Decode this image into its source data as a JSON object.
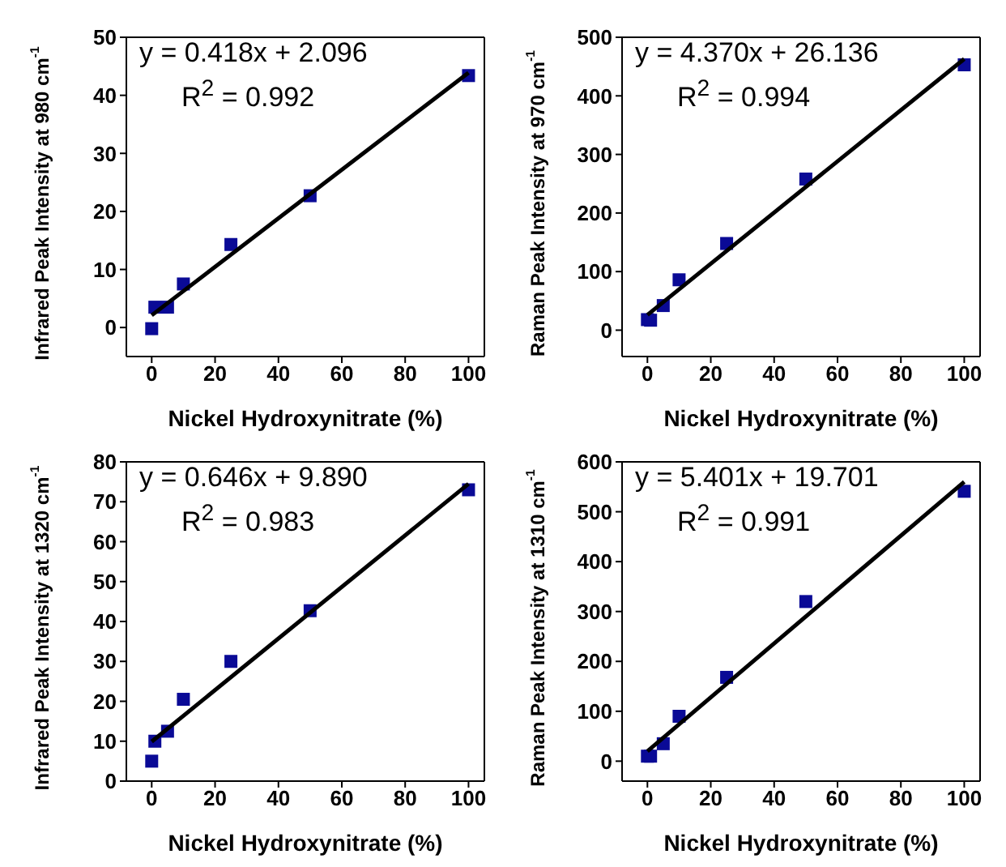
{
  "chart_data": [
    {
      "type": "scatter",
      "xlabel": "Nickel Hydroxynitrate (%)",
      "ylabel": "Infrared Peak Intensity at 980 cm$^{-1}$",
      "xlim": [
        -8,
        105
      ],
      "xticks": [
        0,
        20,
        40,
        60,
        80,
        100
      ],
      "ylim": [
        -5,
        50
      ],
      "yticks": [
        0,
        10,
        20,
        30,
        40,
        50
      ],
      "marker": "square",
      "legend": false,
      "annotations": [
        "y = 0.418x + 2.096",
        "R$^{2}$ = 0.992"
      ],
      "series": [
        {
          "x": [
            0,
            1,
            5,
            10,
            25,
            50,
            100
          ],
          "values": [
            -0.2,
            3.5,
            3.5,
            7.5,
            14.3,
            22.7,
            43.4
          ],
          "color": "#0a0a96"
        },
        {
          "type": "line",
          "x": [
            0,
            100
          ],
          "values": [
            2.1,
            43.9
          ],
          "color": "#000000",
          "marker": "none"
        }
      ]
    },
    {
      "type": "scatter",
      "xlabel": "Nickel Hydroxynitrate (%)",
      "ylabel": "Raman Peak Intensity at 970 cm$^{-1}$",
      "xlim": [
        -8,
        105
      ],
      "xticks": [
        0,
        20,
        40,
        60,
        80,
        100
      ],
      "ylim": [
        -45,
        500
      ],
      "yticks": [
        0,
        100,
        200,
        300,
        400,
        500
      ],
      "marker": "square",
      "legend": false,
      "annotations": [
        "y = 4.370x + 26.136",
        "R$^{2}$ = 0.994"
      ],
      "series": [
        {
          "x": [
            0,
            1,
            5,
            10,
            25,
            50,
            100
          ],
          "values": [
            18,
            17,
            42,
            86,
            148,
            258,
            453
          ],
          "color": "#0a0a96"
        },
        {
          "type": "line",
          "x": [
            0,
            100
          ],
          "values": [
            26,
            463
          ],
          "color": "#000000",
          "marker": "none"
        }
      ]
    },
    {
      "type": "scatter",
      "xlabel": "Nickel Hydroxynitrate (%)",
      "ylabel": "Infrared Peak Intensity at 1320 cm$^{-1}$",
      "xlim": [
        -8,
        105
      ],
      "xticks": [
        0,
        20,
        40,
        60,
        80,
        100
      ],
      "ylim": [
        0,
        80
      ],
      "yticks": [
        0,
        10,
        20,
        30,
        40,
        50,
        60,
        70,
        80
      ],
      "marker": "square",
      "legend": false,
      "annotations": [
        "y = 0.646x + 9.890",
        "R$^{2}$ = 0.983"
      ],
      "series": [
        {
          "x": [
            0,
            1,
            5,
            10,
            25,
            50,
            100
          ],
          "values": [
            5,
            10,
            12.5,
            20.5,
            30,
            42.7,
            73
          ],
          "color": "#0a0a96"
        },
        {
          "type": "line",
          "x": [
            0,
            100
          ],
          "values": [
            9.9,
            74.5
          ],
          "color": "#000000",
          "marker": "none"
        }
      ]
    },
    {
      "type": "scatter",
      "xlabel": "Nickel Hydroxynitrate (%)",
      "ylabel": "Raman Peak Intensity at 1310 cm$^{-1}$",
      "xlim": [
        -8,
        105
      ],
      "xticks": [
        0,
        20,
        40,
        60,
        80,
        100
      ],
      "ylim": [
        -40,
        600
      ],
      "yticks": [
        0,
        100,
        200,
        300,
        400,
        500,
        600
      ],
      "marker": "square",
      "legend": false,
      "annotations": [
        "y = 5.401x + 19.701",
        "R$^{2}$ = 0.991"
      ],
      "series": [
        {
          "x": [
            0,
            1,
            5,
            10,
            25,
            50,
            100
          ],
          "values": [
            10,
            10,
            35,
            90,
            168,
            320,
            541
          ],
          "color": "#0a0a96"
        },
        {
          "type": "line",
          "x": [
            0,
            100
          ],
          "values": [
            20,
            560
          ],
          "color": "#000000",
          "marker": "none"
        }
      ]
    }
  ]
}
